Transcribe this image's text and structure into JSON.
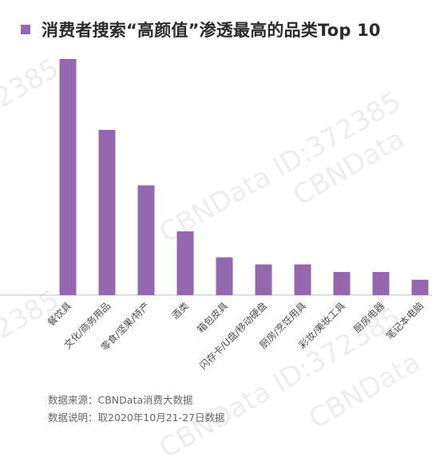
{
  "title": "消费者搜索“高颜值”渗透最高的品类Top 10",
  "watermark": {
    "brand": "CBNData",
    "id_text": "CBNData ID:372385",
    "number": "72385"
  },
  "notes": {
    "source": "数据来源：CBNData消费大数据",
    "period": "数据说明：取2020年10月21-27日数据"
  },
  "colors": {
    "bar": "#9467b0",
    "axis": "#bfbfbf"
  },
  "chart_data": {
    "type": "bar",
    "title": "消费者搜索“高颜值”渗透最高的品类Top 10",
    "categories": [
      "餐饮具",
      "文化/商务用品",
      "零食/坚果/特产",
      "酒类",
      "箱包皮具",
      "闪存卡/U盘/移动硬盘",
      "厨房/烹饪用具",
      "彩妆/美妆工具",
      "厨房电器",
      "笔记本电脑"
    ],
    "values": [
      100,
      70,
      46.5,
      27,
      16,
      13,
      13,
      9.8,
      9.8,
      6.5
    ],
    "ylim": [
      0,
      100
    ],
    "xlabel": "",
    "ylabel": "",
    "grid": false,
    "legend": "top-left"
  }
}
